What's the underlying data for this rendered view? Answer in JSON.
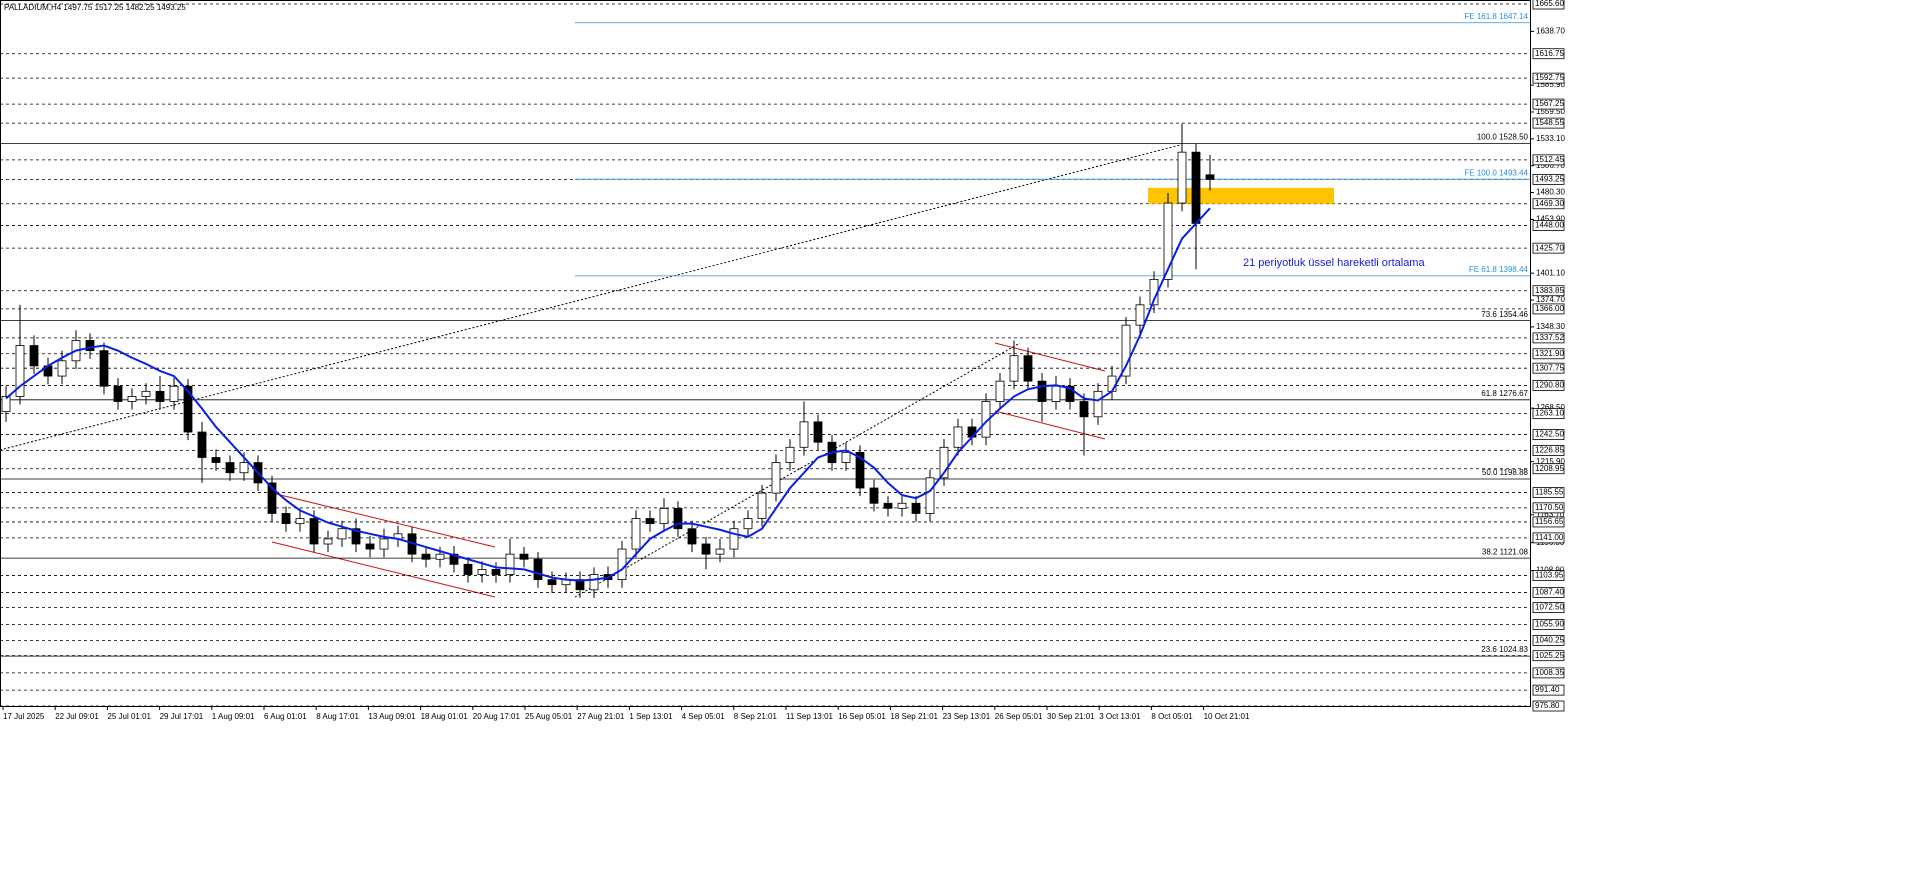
{
  "chart_data": {
    "type": "candlestick",
    "header": "PALLADIUM,H4  1497.75 1517.25 1482.25 1493.25",
    "annotation": "21 periyotluk üssel hareketli ortalama",
    "ylim": [
      975.8,
      1665.6
    ],
    "yticks": [
      {
        "value": 1638.7,
        "label": "1638.70"
      },
      {
        "value": 1585.9,
        "label": "1585.90"
      },
      {
        "value": 1559.5,
        "label": "1559.50"
      },
      {
        "value": 1533.1,
        "label": "1533.10"
      },
      {
        "value": 1506.7,
        "label": "1506.70"
      },
      {
        "value": 1480.3,
        "label": "1480.30"
      },
      {
        "value": 1453.9,
        "label": "1453.90"
      },
      {
        "value": 1401.1,
        "label": "1401.10"
      },
      {
        "value": 1374.7,
        "label": "1374.70"
      },
      {
        "value": 1348.3,
        "label": "1348.30"
      },
      {
        "value": 1268.5,
        "label": "1268.50"
      },
      {
        "value": 1215.9,
        "label": "1215.90"
      },
      {
        "value": 1163.7,
        "label": "1163.70"
      },
      {
        "value": 1136.3,
        "label": "1136.30"
      },
      {
        "value": 1108.9,
        "label": "1108.90"
      }
    ],
    "levels": [
      {
        "value": 1665.6,
        "label": "1665.60"
      },
      {
        "value": 1616.75,
        "label": "1616.75"
      },
      {
        "value": 1592.75,
        "label": "1592.75"
      },
      {
        "value": 1567.25,
        "label": "1567.25"
      },
      {
        "value": 1548.55,
        "label": "1548.55"
      },
      {
        "value": 1512.45,
        "label": "1512.45"
      },
      {
        "value": 1493.25,
        "label": "1493.25"
      },
      {
        "value": 1469.3,
        "label": "1469.30"
      },
      {
        "value": 1448,
        "label": "1448.00"
      },
      {
        "value": 1425.7,
        "label": "1425.70"
      },
      {
        "value": 1383.85,
        "label": "1383.85"
      },
      {
        "value": 1366,
        "label": "1366.00"
      },
      {
        "value": 1337.52,
        "label": "1337.52"
      },
      {
        "value": 1321.9,
        "label": "1321.90"
      },
      {
        "value": 1307.75,
        "label": "1307.75"
      },
      {
        "value": 1290.8,
        "label": "1290.80"
      },
      {
        "value": 1263.1,
        "label": "1263.10"
      },
      {
        "value": 1242.5,
        "label": "1242.50"
      },
      {
        "value": 1226.85,
        "label": "1226.85"
      },
      {
        "value": 1208.95,
        "label": "1208.95"
      },
      {
        "value": 1185.55,
        "label": "1185.55"
      },
      {
        "value": 1170.5,
        "label": "1170.50"
      },
      {
        "value": 1156.65,
        "label": "1156.65"
      },
      {
        "value": 1141,
        "label": "1141.00"
      },
      {
        "value": 1103.95,
        "label": "1103.95"
      },
      {
        "value": 1087.4,
        "label": "1087.40"
      },
      {
        "value": 1072.5,
        "label": "1072.50"
      },
      {
        "value": 1055.9,
        "label": "1055.90"
      },
      {
        "value": 1040.25,
        "label": "1040.25"
      },
      {
        "value": 1025.25,
        "label": "1025.25"
      },
      {
        "value": 1008.35,
        "label": "1008.35"
      },
      {
        "value": 991.4,
        "label": "991.40"
      },
      {
        "value": 975.8,
        "label": "975.80"
      }
    ],
    "fib_levels": [
      {
        "value": 1528.5,
        "label": "100.0 1528.50"
      },
      {
        "value": 1354.46,
        "label": "73.6 1354.46"
      },
      {
        "value": 1276.67,
        "label": "61.8 1276.67"
      },
      {
        "value": 1198.88,
        "label": "50.0 1198.88"
      },
      {
        "value": 1121.08,
        "label": "38.2 1121.08"
      },
      {
        "value": 1024.83,
        "label": "23.6 1024.83"
      }
    ],
    "fe_levels": [
      {
        "value": 1647.14,
        "label": "FE 161.8 1647.14"
      },
      {
        "value": 1493.44,
        "label": "FE 100.0 1493.44"
      },
      {
        "value": 1398.44,
        "label": "FE 61.8 1398.44"
      }
    ],
    "fe_color": "#2f8fd8",
    "zone": {
      "from": 1469.3,
      "to": 1485,
      "color": "#ffc400"
    },
    "x_labels": [
      "17 Jul 2025",
      "22 Jul 09:01",
      "25 Jul 01:01",
      "29 Jul 17:01",
      "1 Aug 09:01",
      "6 Aug 01:01",
      "8 Aug 17:01",
      "13 Aug 09:01",
      "18 Aug 01:01",
      "20 Aug 17:01",
      "25 Aug 05:01",
      "27 Aug 21:01",
      "1 Sep 13:01",
      "4 Sep 05:01",
      "8 Sep 21:01",
      "11 Sep 13:01",
      "16 Sep 05:01",
      "18 Sep 21:01",
      "23 Sep 13:01",
      "26 Sep 05:01",
      "30 Sep 21:01",
      "3 Oct 13:01",
      "8 Oct 05:01",
      "10 Oct 21:01"
    ],
    "open": [
      1265,
      1280,
      1330,
      1310,
      1300,
      1315,
      1335,
      1325,
      1290,
      1275,
      1280,
      1285,
      1275,
      1290,
      1245,
      1220,
      1215,
      1205,
      1215,
      1195,
      1165,
      1155,
      1160,
      1135,
      1140,
      1150,
      1135,
      1130,
      1140,
      1145,
      1125,
      1120,
      1125,
      1115,
      1105,
      1110,
      1105,
      1125,
      1120,
      1100,
      1095,
      1100,
      1090,
      1105,
      1100,
      1130,
      1160,
      1155,
      1170,
      1150,
      1135,
      1125,
      1130,
      1150,
      1160,
      1185,
      1215,
      1230,
      1255,
      1235,
      1215,
      1225,
      1190,
      1175,
      1170,
      1175,
      1165,
      1200,
      1230,
      1250,
      1240,
      1275,
      1295,
      1320,
      1295,
      1275,
      1290,
      1275,
      1260,
      1285,
      1300,
      1350,
      1370,
      1395,
      1470,
      1520,
      1497.75
    ],
    "high": [
      1290,
      1370,
      1340,
      1318,
      1325,
      1345,
      1342,
      1333,
      1298,
      1288,
      1293,
      1300,
      1298,
      1297,
      1255,
      1228,
      1222,
      1225,
      1222,
      1202,
      1172,
      1170,
      1168,
      1148,
      1158,
      1160,
      1143,
      1150,
      1153,
      1152,
      1133,
      1132,
      1133,
      1122,
      1118,
      1117,
      1140,
      1132,
      1127,
      1108,
      1107,
      1108,
      1112,
      1113,
      1138,
      1168,
      1168,
      1180,
      1177,
      1158,
      1142,
      1140,
      1158,
      1168,
      1193,
      1223,
      1238,
      1275,
      1262,
      1242,
      1235,
      1232,
      1198,
      1182,
      1183,
      1182,
      1208,
      1238,
      1258,
      1258,
      1283,
      1303,
      1335,
      1328,
      1303,
      1300,
      1298,
      1283,
      1293,
      1310,
      1358,
      1378,
      1403,
      1480,
      1548,
      1528,
      1517.25
    ],
    "low": [
      1255,
      1272,
      1302,
      1292,
      1292,
      1307,
      1317,
      1282,
      1267,
      1267,
      1272,
      1267,
      1267,
      1237,
      1195,
      1207,
      1197,
      1197,
      1187,
      1157,
      1147,
      1147,
      1127,
      1127,
      1132,
      1127,
      1122,
      1122,
      1132,
      1117,
      1112,
      1112,
      1107,
      1097,
      1097,
      1097,
      1097,
      1112,
      1092,
      1087,
      1087,
      1082,
      1082,
      1092,
      1092,
      1122,
      1147,
      1147,
      1142,
      1127,
      1110,
      1117,
      1122,
      1142,
      1152,
      1177,
      1207,
      1222,
      1227,
      1207,
      1207,
      1182,
      1167,
      1162,
      1162,
      1157,
      1157,
      1192,
      1222,
      1232,
      1232,
      1267,
      1287,
      1287,
      1255,
      1267,
      1267,
      1222,
      1252,
      1277,
      1292,
      1342,
      1362,
      1387,
      1462,
      1405,
      1482.25
    ],
    "close": [
      1280,
      1330,
      1310,
      1300,
      1315,
      1335,
      1325,
      1290,
      1275,
      1280,
      1285,
      1275,
      1290,
      1245,
      1220,
      1215,
      1205,
      1215,
      1195,
      1165,
      1155,
      1160,
      1135,
      1140,
      1150,
      1135,
      1130,
      1140,
      1145,
      1125,
      1120,
      1125,
      1115,
      1105,
      1110,
      1105,
      1125,
      1120,
      1100,
      1095,
      1100,
      1090,
      1105,
      1100,
      1130,
      1160,
      1155,
      1170,
      1150,
      1135,
      1125,
      1130,
      1150,
      1160,
      1185,
      1215,
      1230,
      1255,
      1235,
      1215,
      1225,
      1190,
      1175,
      1170,
      1175,
      1165,
      1200,
      1230,
      1250,
      1240,
      1275,
      1295,
      1320,
      1295,
      1275,
      1290,
      1275,
      1260,
      1285,
      1300,
      1350,
      1370,
      1395,
      1470,
      1520,
      1450,
      1493.25
    ],
    "ema": {
      "color": "#0a1ee6",
      "values": [
        1278,
        1290,
        1300,
        1310,
        1318,
        1325,
        1328,
        1330,
        1325,
        1318,
        1312,
        1305,
        1300,
        1285,
        1268,
        1250,
        1235,
        1220,
        1205,
        1190,
        1178,
        1168,
        1162,
        1156,
        1152,
        1148,
        1145,
        1142,
        1140,
        1136,
        1132,
        1128,
        1124,
        1120,
        1116,
        1112,
        1111,
        1110,
        1106,
        1102,
        1100,
        1099,
        1100,
        1102,
        1110,
        1125,
        1140,
        1148,
        1155,
        1155,
        1152,
        1149,
        1145,
        1142,
        1150,
        1170,
        1190,
        1205,
        1220,
        1225,
        1227,
        1220,
        1210,
        1195,
        1183,
        1180,
        1187,
        1205,
        1225,
        1240,
        1255,
        1268,
        1280,
        1287,
        1290,
        1291,
        1288,
        1278,
        1276,
        1285,
        1310,
        1340,
        1375,
        1405,
        1435,
        1450,
        1465
      ]
    }
  }
}
